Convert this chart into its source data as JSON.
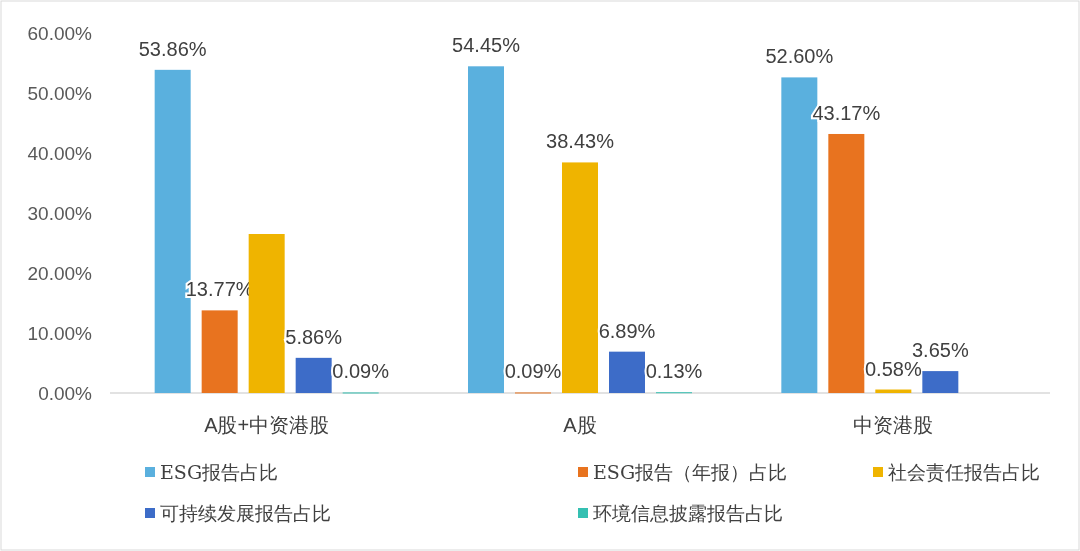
{
  "chart_data": {
    "type": "bar",
    "categories": [
      "A股+中资港股",
      "A股",
      "中资港股"
    ],
    "series": [
      {
        "name": "ESG报告占比",
        "color": "#5ab0de",
        "values": [
          53.86,
          54.45,
          52.6
        ],
        "value_labels": [
          "53.86%",
          "54.45%",
          "52.60%"
        ]
      },
      {
        "name": "ESG报告（年报）占比",
        "color": "#e8731f",
        "values": [
          13.77,
          0.09,
          43.17
        ],
        "value_labels": [
          "13.77%",
          "0.09%",
          "43.17%"
        ]
      },
      {
        "name": "社会责任报告占比",
        "color": "#efb400",
        "values": [
          26.5,
          38.43,
          0.58
        ],
        "value_labels": [
          null,
          "38.43%",
          "0.58%"
        ]
      },
      {
        "name": "可持续发展报告占比",
        "color": "#3d6cc8",
        "values": [
          5.86,
          6.89,
          3.65
        ],
        "value_labels": [
          "5.86%",
          "6.89%",
          "3.65%"
        ]
      },
      {
        "name": "环境信息披露报告占比",
        "color": "#35c0b2",
        "values": [
          0.09,
          0.13,
          null
        ],
        "value_labels": [
          "0.09%",
          "0.13%",
          null
        ]
      }
    ],
    "ylim": [
      0,
      60
    ],
    "yticks": [
      {
        "value": 0,
        "label": "0.00%"
      },
      {
        "value": 10,
        "label": "10.00%"
      },
      {
        "value": 20,
        "label": "20.00%"
      },
      {
        "value": 30,
        "label": "30.00%"
      },
      {
        "value": 40,
        "label": "40.00%"
      },
      {
        "value": 50,
        "label": "50.00%"
      },
      {
        "value": 60,
        "label": "60.00%"
      }
    ],
    "grid": false,
    "legend": "bottom"
  }
}
